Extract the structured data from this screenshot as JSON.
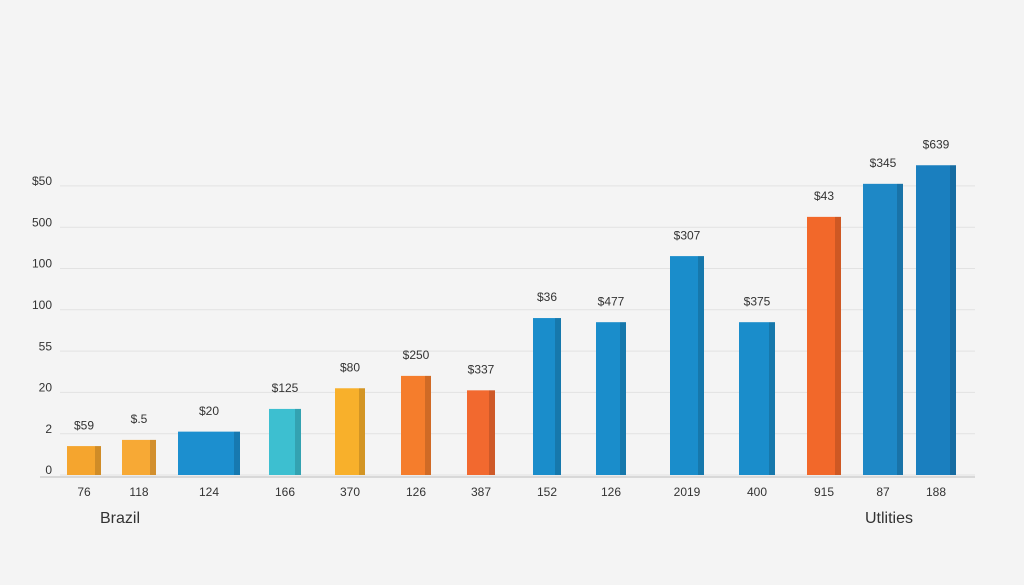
{
  "chart_data": {
    "type": "bar",
    "categories": [
      "76",
      "118",
      "124",
      "166",
      "370",
      "126",
      "387",
      "152",
      "126",
      "2019",
      "400",
      "915",
      "87",
      "188"
    ],
    "values": [
      0.7,
      0.85,
      1.05,
      1.6,
      2.1,
      2.4,
      2.05,
      3.8,
      3.7,
      5.3,
      3.7,
      6.25,
      7.05,
      7.5
    ],
    "bar_labels": [
      "$59",
      "$.5",
      "$20",
      "$125",
      "$80",
      "$250",
      "$337",
      "$36",
      "$477",
      "$307",
      "$375",
      "$43",
      "$345",
      "$639"
    ],
    "colors": [
      "#f5a52e",
      "#f7a935",
      "#1c8fcf",
      "#3dbfd0",
      "#f8b02b",
      "#f57d2c",
      "#f2692f",
      "#1a8dcb",
      "#1a8dcb",
      "#1a8dcb",
      "#1a8dcb",
      "#f2682a",
      "#1e88c6",
      "#1a7fbf"
    ],
    "ylim": [
      0,
      7.5
    ],
    "yticks": [
      {
        "value": 0,
        "label": "0"
      },
      {
        "value": 1,
        "label": "2"
      },
      {
        "value": 2,
        "label": "20"
      },
      {
        "value": 3,
        "label": "55"
      },
      {
        "value": 4,
        "label": "100"
      },
      {
        "value": 5,
        "label": "100"
      },
      {
        "value": 6,
        "label": "500"
      },
      {
        "value": 7,
        "label": "$50"
      }
    ],
    "grid": true,
    "x_label_left": "Brazil",
    "x_label_right": "Utlities"
  }
}
